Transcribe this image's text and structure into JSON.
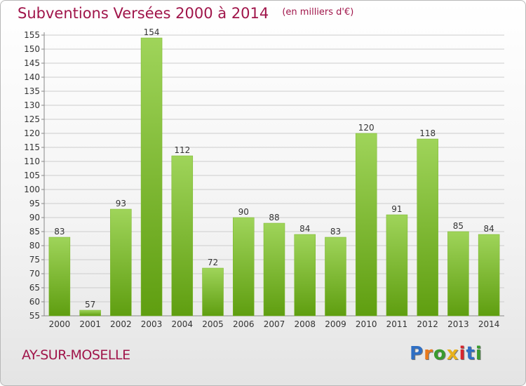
{
  "header": {
    "title": "Subventions Versées 2000 à 2014",
    "subtitle": "(en milliers d'€)"
  },
  "footer": {
    "commune": "AY-SUR-MOSELLE",
    "logo_letters": [
      "P",
      "r",
      "o",
      "x",
      "i",
      "t",
      "i"
    ],
    "logo_colors": [
      "#2f6fc4",
      "#e8791c",
      "#3a9b2e",
      "#e8b11c",
      "#d6262f",
      "#2f6fc4",
      "#3a9b2e"
    ]
  },
  "colors": {
    "title": "#a0154a",
    "bar_top": "#9fd45a",
    "bar_bottom": "#5f9e10",
    "grid": "#cccccc"
  },
  "chart_data": {
    "type": "bar",
    "title": "Subventions Versées 2000 à 2014",
    "subtitle": "(en milliers d'€)",
    "xlabel": "",
    "ylabel": "",
    "categories": [
      "2000",
      "2001",
      "2002",
      "2003",
      "2004",
      "2005",
      "2006",
      "2007",
      "2008",
      "2009",
      "2010",
      "2011",
      "2012",
      "2013",
      "2014"
    ],
    "values": [
      83,
      57,
      93,
      154,
      112,
      72,
      90,
      88,
      84,
      83,
      120,
      91,
      118,
      85,
      84
    ],
    "data_labels": [
      "83",
      "57",
      "93",
      "154",
      "112",
      "72",
      "90",
      "88",
      "84",
      "83",
      "120",
      "91",
      "118",
      "85",
      "84"
    ],
    "ylim": [
      55,
      155
    ],
    "yticks": [
      "55",
      "60",
      "65",
      "70",
      "75",
      "80",
      "85",
      "90",
      "95",
      "100",
      "105",
      "110",
      "115",
      "120",
      "125",
      "130",
      "135",
      "140",
      "145",
      "150",
      "155"
    ],
    "grid": true,
    "legend": "none"
  }
}
